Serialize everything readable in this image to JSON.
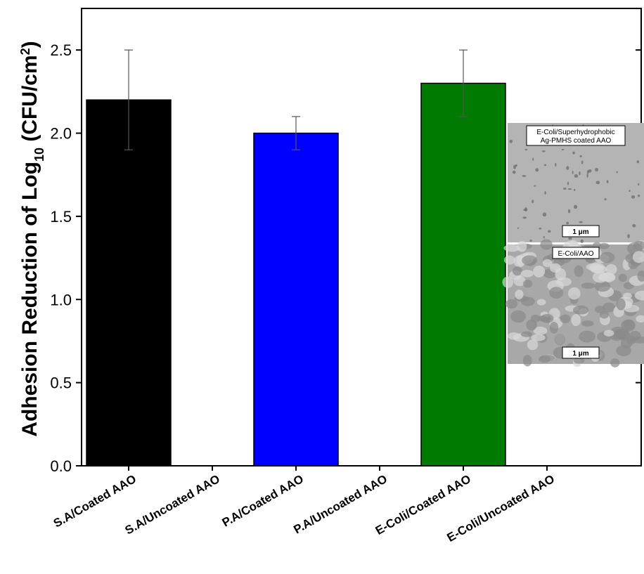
{
  "chart_data": {
    "type": "bar",
    "ylabel": [
      "Adhesion Reduction of Log",
      "10",
      " (CFU/cm",
      "2",
      ")"
    ],
    "categories": [
      "S.A/Coated AAO",
      "S.A/Uncoated AAO",
      "P.A/Coated AAO",
      "P.A/Uncoated AAO",
      "E-Coli/Coated AAO",
      "E-Coli/Uncoated AAO"
    ],
    "values": [
      2.2,
      null,
      2.0,
      null,
      2.3,
      null
    ],
    "errors": [
      0.3,
      null,
      0.1,
      null,
      0.2,
      null
    ],
    "colors": [
      "#000000",
      null,
      "#0000ff",
      null,
      "#007a00",
      null
    ],
    "ylim": [
      0,
      2.75
    ],
    "yticks": [
      {
        "value": 0,
        "label": "0.0"
      },
      0.5,
      {
        "value": 1,
        "label": "1.0"
      },
      1.5,
      {
        "value": 2,
        "label": "2.0"
      },
      2.5
    ],
    "insets": [
      {
        "label": [
          "E-Coli/Superhydrophobic",
          "Ag-PMHS coated AAO"
        ],
        "scale": "1 μm"
      },
      {
        "label": [
          "E-Coli/AAO"
        ],
        "scale": "1 μm"
      }
    ]
  }
}
